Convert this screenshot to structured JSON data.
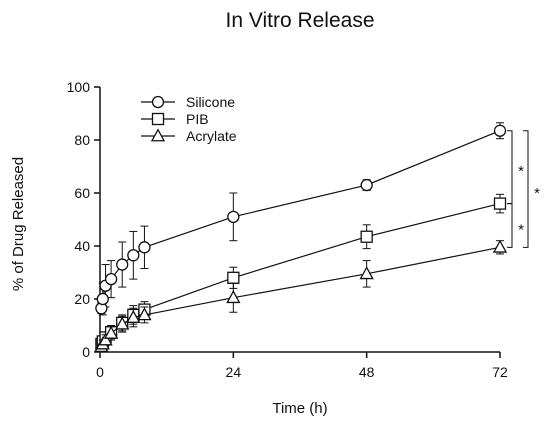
{
  "chart_data": {
    "type": "line",
    "title": "In Vitro Release",
    "xlabel": "Time (h)",
    "ylabel": "% of Drug Released",
    "xlim": [
      0,
      72
    ],
    "ylim": [
      0,
      100
    ],
    "xticks": [
      0,
      24,
      48,
      72
    ],
    "yticks": [
      0,
      20,
      40,
      60,
      80,
      100
    ],
    "legend_position": "top-left",
    "grid": false,
    "series": [
      {
        "name": "Silicone",
        "marker": "circle",
        "points": [
          {
            "x": 0.25,
            "y": 16.5,
            "err": 2
          },
          {
            "x": 0.5,
            "y": 20,
            "err": 6
          },
          {
            "x": 1,
            "y": 25,
            "err": 8
          },
          {
            "x": 2,
            "y": 27.5,
            "err": 7
          },
          {
            "x": 4,
            "y": 33,
            "err": 8.5
          },
          {
            "x": 6,
            "y": 36.5,
            "err": 9
          },
          {
            "x": 8,
            "y": 39.5,
            "err": 8
          },
          {
            "x": 24,
            "y": 51,
            "err": 9
          },
          {
            "x": 48,
            "y": 63,
            "err": 2
          },
          {
            "x": 72,
            "y": 83.5,
            "err": 3
          }
        ]
      },
      {
        "name": "PIB",
        "marker": "square",
        "points": [
          {
            "x": 0.25,
            "y": 3,
            "err": 1
          },
          {
            "x": 0.5,
            "y": 4,
            "err": 1.5
          },
          {
            "x": 1,
            "y": 5.5,
            "err": 2
          },
          {
            "x": 2,
            "y": 7.5,
            "err": 2.5
          },
          {
            "x": 4,
            "y": 11,
            "err": 3
          },
          {
            "x": 6,
            "y": 14,
            "err": 3.5
          },
          {
            "x": 8,
            "y": 16,
            "err": 3
          },
          {
            "x": 24,
            "y": 28,
            "err": 4
          },
          {
            "x": 48,
            "y": 43.5,
            "err": 4.5
          },
          {
            "x": 72,
            "y": 56,
            "err": 3.5
          }
        ]
      },
      {
        "name": "Acrylate",
        "marker": "triangle",
        "points": [
          {
            "x": 0.25,
            "y": 2,
            "err": 1
          },
          {
            "x": 0.5,
            "y": 3,
            "err": 1.5
          },
          {
            "x": 1,
            "y": 4.5,
            "err": 2
          },
          {
            "x": 2,
            "y": 7,
            "err": 2.5
          },
          {
            "x": 4,
            "y": 10.5,
            "err": 3
          },
          {
            "x": 6,
            "y": 13,
            "err": 3.5
          },
          {
            "x": 8,
            "y": 14,
            "err": 3
          },
          {
            "x": 24,
            "y": 20.5,
            "err": 5.5
          },
          {
            "x": 48,
            "y": 29.5,
            "err": 5
          },
          {
            "x": 72,
            "y": 39.5,
            "err": 2.5
          }
        ]
      }
    ],
    "annotations": [
      {
        "label": "*",
        "from": "Silicone",
        "to": "PIB",
        "at_x": 72
      },
      {
        "label": "*",
        "from": "PIB",
        "to": "Acrylate",
        "at_x": 72
      },
      {
        "label": "*",
        "from": "Silicone",
        "to": "Acrylate",
        "at_x": 72
      }
    ]
  }
}
